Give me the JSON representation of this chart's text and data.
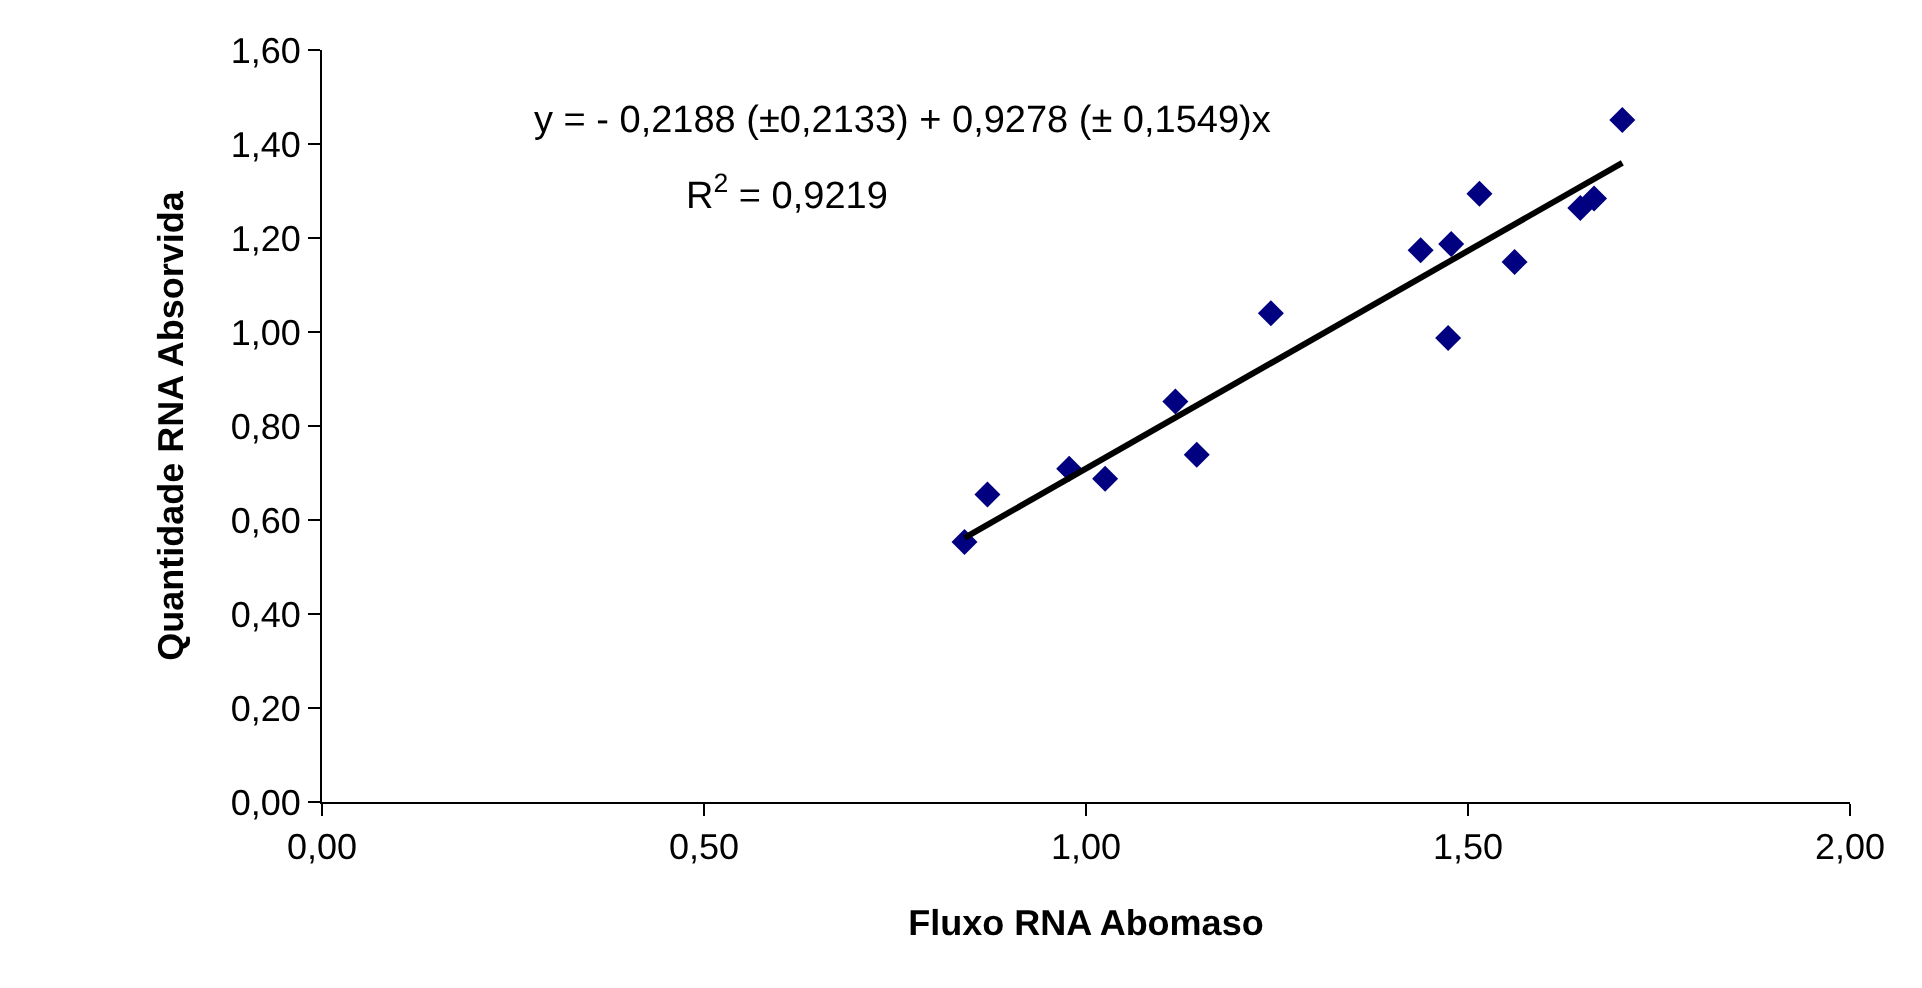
{
  "chart_data": {
    "type": "scatter",
    "xlabel": "Fluxo RNA Abomaso",
    "ylabel": "Quantidade RNA Absorvida",
    "xlim": [
      0,
      2
    ],
    "xticks": [
      {
        "value": 0,
        "label": "0,00"
      },
      {
        "value": 0.5,
        "label": "0,50"
      },
      {
        "value": 1,
        "label": "1,00"
      },
      {
        "value": 1.5,
        "label": "1,50"
      },
      {
        "value": 2,
        "label": "2,00"
      }
    ],
    "ylim": [
      0,
      1.6
    ],
    "yticks": [
      {
        "value": 0,
        "label": "0,00"
      },
      {
        "value": 0.2,
        "label": "0,20"
      },
      {
        "value": 0.4,
        "label": "0,40"
      },
      {
        "value": 0.6,
        "label": "0,60"
      },
      {
        "value": 0.8,
        "label": "0,80"
      },
      {
        "value": 1,
        "label": "1,00"
      },
      {
        "value": 1.2,
        "label": "1,20"
      },
      {
        "value": 1.4,
        "label": "1,40"
      },
      {
        "value": 1.6,
        "label": "1,60"
      }
    ],
    "grid": false,
    "series": [
      {
        "marker": "diamond",
        "color": "#000080",
        "x": [
          0.841,
          0.871,
          0.978,
          1.025,
          1.117,
          1.145,
          1.242,
          1.438,
          1.478,
          1.474,
          1.515,
          1.561,
          1.647,
          1.665,
          1.702
        ],
        "values": [
          0.553,
          0.654,
          0.709,
          0.688,
          0.852,
          0.739,
          1.04,
          1.174,
          1.187,
          0.987,
          1.294,
          1.149,
          1.264,
          1.284,
          1.451
        ]
      },
      {
        "type": "line",
        "marker": "none",
        "color": "#000000",
        "line_style": "solid",
        "x": [
          0.841,
          1.702
        ],
        "values": [
          0.562,
          1.36
        ]
      }
    ],
    "annotations": [
      "y = - 0,2188 (±0,2133) + 0,9278 (± 0,1549)x",
      "R$^{2}$ = 0,9219"
    ]
  }
}
